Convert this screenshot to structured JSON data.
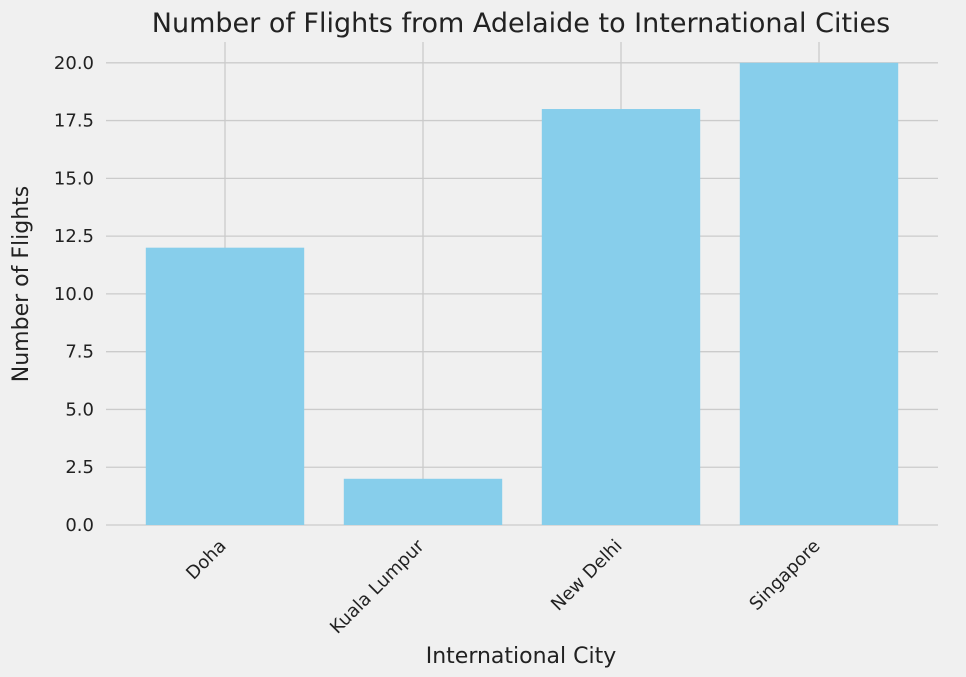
{
  "chart_data": {
    "type": "bar",
    "title": "Number of Flights from Adelaide to International Cities",
    "xlabel": "International City",
    "ylabel": "Number of Flights",
    "categories": [
      "Doha",
      "Kuala Lumpur",
      "New Delhi",
      "Singapore"
    ],
    "values": [
      12,
      2,
      18,
      20
    ],
    "ylim": [
      0,
      20.9
    ],
    "yticks": [
      "0.0",
      "2.5",
      "5.0",
      "7.5",
      "10.0",
      "12.5",
      "15.0",
      "17.5",
      "20.0"
    ],
    "grid": true,
    "bar_color": "#87ceeb",
    "background_color": "#f0f0f0",
    "x_tick_rotation_deg": 45
  }
}
